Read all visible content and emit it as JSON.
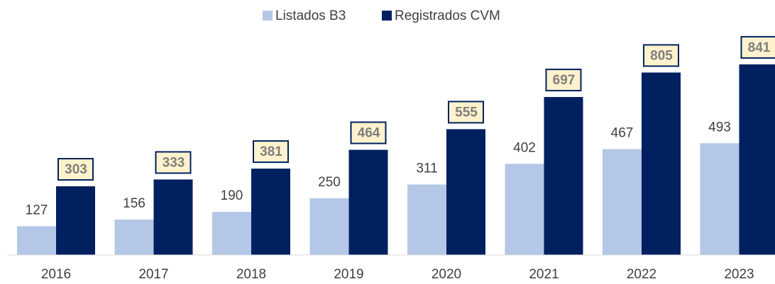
{
  "chart_data": {
    "type": "bar",
    "categories": [
      "2016",
      "2017",
      "2018",
      "2019",
      "2020",
      "2021",
      "2022",
      "2023"
    ],
    "series": [
      {
        "name": "Listados B3",
        "color": "#b4c7e7",
        "values": [
          127,
          156,
          190,
          250,
          311,
          402,
          467,
          493
        ]
      },
      {
        "name": "Registrados CVM",
        "color": "#002060",
        "values": [
          303,
          333,
          381,
          464,
          555,
          697,
          805,
          841
        ]
      }
    ],
    "ylim": [
      0,
      900
    ],
    "legend": "top"
  }
}
